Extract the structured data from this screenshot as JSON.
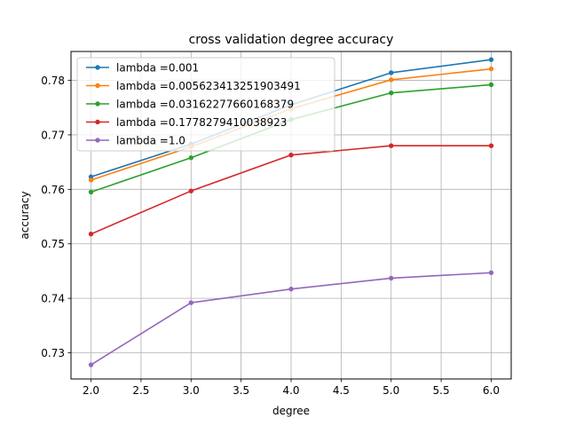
{
  "chart_data": {
    "type": "line",
    "title": "cross validation degree accuracy",
    "xlabel": "degree",
    "ylabel": "accuracy",
    "x": [
      2.0,
      3.0,
      4.0,
      5.0,
      6.0
    ],
    "xlim": [
      1.8,
      6.2
    ],
    "ylim": [
      0.7252,
      0.7853
    ],
    "xticks": [
      2.0,
      2.5,
      3.0,
      3.5,
      4.0,
      4.5,
      5.0,
      5.5,
      6.0
    ],
    "xtick_labels": [
      "2.0",
      "2.5",
      "3.0",
      "3.5",
      "4.0",
      "4.5",
      "5.0",
      "5.5",
      "6.0"
    ],
    "yticks": [
      0.73,
      0.74,
      0.75,
      0.76,
      0.77,
      0.78
    ],
    "ytick_labels": [
      "0.73",
      "0.74",
      "0.75",
      "0.76",
      "0.77",
      "0.78"
    ],
    "grid": true,
    "legend_position": "top-left",
    "markers": true,
    "series": [
      {
        "name": "lambda =0.001",
        "color": "#1f77b4",
        "values": [
          0.7623,
          0.7683,
          0.7755,
          0.7814,
          0.7838
        ]
      },
      {
        "name": "lambda =0.005623413251903491",
        "color": "#ff7f0e",
        "values": [
          0.7617,
          0.7678,
          0.7748,
          0.7801,
          0.7821
        ]
      },
      {
        "name": "lambda =0.03162277660168379",
        "color": "#2ca02c",
        "values": [
          0.7595,
          0.7658,
          0.7728,
          0.7777,
          0.7792
        ]
      },
      {
        "name": "lambda =0.1778279410038923",
        "color": "#d62728",
        "values": [
          0.7518,
          0.7597,
          0.7663,
          0.768,
          0.768
        ]
      },
      {
        "name": "lambda =1.0",
        "color": "#9467bd",
        "values": [
          0.7278,
          0.7392,
          0.7417,
          0.7437,
          0.7447
        ]
      }
    ]
  }
}
